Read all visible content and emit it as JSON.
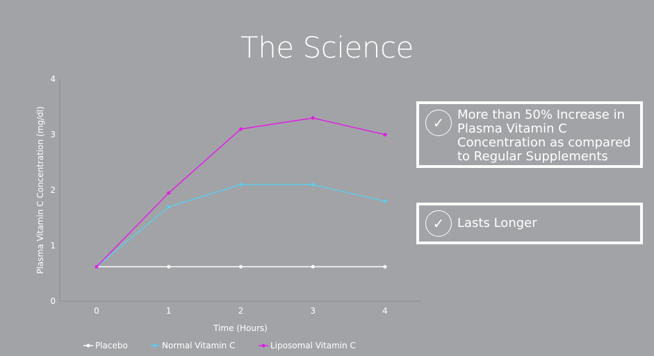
{
  "title": "The Science",
  "chart_data": {
    "type": "line",
    "title": "The Science",
    "xlabel": "Time (Hours)",
    "ylabel": "Plasma Vitamin C Concentration (mg/dl)",
    "x": [
      0,
      1,
      2,
      3,
      4
    ],
    "xticks": [
      "0",
      "1",
      "2",
      "3",
      "4"
    ],
    "yticks": [
      "0",
      "1",
      "2",
      "3",
      "4"
    ],
    "ylim": [
      0,
      4
    ],
    "grid": false,
    "legend_position": "bottom",
    "series": [
      {
        "name": "Placebo",
        "color": "#ffffff",
        "values": [
          0.62,
          0.62,
          0.62,
          0.62,
          0.62
        ]
      },
      {
        "name": "Normal Vitamin C",
        "color": "#5fcbe8",
        "values": [
          0.62,
          1.7,
          2.1,
          2.1,
          1.8
        ]
      },
      {
        "name": "Liposomal Vitamin C",
        "color": "#e21ee6",
        "values": [
          0.62,
          1.95,
          3.1,
          3.3,
          3.0
        ]
      }
    ]
  },
  "cards": [
    {
      "icon": "check-circle-icon",
      "text": "More than 50% Increase in Plasma Vitamin C Concentration as compared to Regular Supplements"
    },
    {
      "icon": "check-circle-icon",
      "text": "Lasts Longer"
    }
  ]
}
